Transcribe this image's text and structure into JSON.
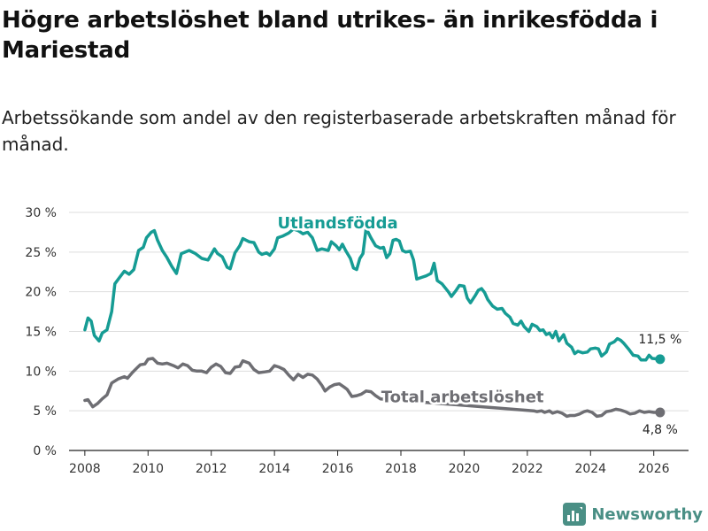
{
  "title": "Högre arbetslöshet bland utrikes- än inrikesfödda i Mariestad",
  "subtitle": "Arbetssökande som andel av den registerbaserade arbetskraften månad för månad.",
  "brand": {
    "name": "Newsworthy",
    "color": "#4a8f85",
    "icon": "newsworthy-logo-icon"
  },
  "chart_data": {
    "type": "line",
    "title": "Högre arbetslöshet bland utrikes- än inrikesfödda i Mariestad",
    "xlabel": "",
    "ylabel": "",
    "xlim": [
      2007.5,
      2027.1
    ],
    "ylim": [
      0,
      30
    ],
    "grid": true,
    "x_ticks": [
      2008,
      2010,
      2012,
      2014,
      2016,
      2018,
      2020,
      2022,
      2024,
      2026
    ],
    "x_tick_labels": [
      "2008",
      "2010",
      "2012",
      "2014",
      "2016",
      "2018",
      "2020",
      "2022",
      "2024",
      "2026"
    ],
    "y_ticks": [
      0,
      5,
      10,
      15,
      20,
      25,
      30
    ],
    "y_tick_labels": [
      "0 %",
      "5 %",
      "10 %",
      "15 %",
      "20 %",
      "25 %",
      "30 %"
    ],
    "series": [
      {
        "name": "Utlandsfödda",
        "color": "#169c94",
        "end_label": "11,5 %",
        "points": [
          [
            2008.0,
            15.2
          ],
          [
            2008.1,
            16.7
          ],
          [
            2008.2,
            16.3
          ],
          [
            2008.3,
            14.5
          ],
          [
            2008.45,
            13.8
          ],
          [
            2008.55,
            14.8
          ],
          [
            2008.7,
            15.2
          ],
          [
            2008.85,
            17.5
          ],
          [
            2008.95,
            21.0
          ],
          [
            2009.1,
            21.8
          ],
          [
            2009.25,
            22.6
          ],
          [
            2009.4,
            22.2
          ],
          [
            2009.55,
            22.8
          ],
          [
            2009.7,
            25.2
          ],
          [
            2009.85,
            25.6
          ],
          [
            2009.95,
            26.8
          ],
          [
            2010.1,
            27.5
          ],
          [
            2010.2,
            27.7
          ],
          [
            2010.3,
            26.5
          ],
          [
            2010.45,
            25.2
          ],
          [
            2010.6,
            24.3
          ],
          [
            2010.75,
            23.2
          ],
          [
            2010.9,
            22.3
          ],
          [
            2011.05,
            24.8
          ],
          [
            2011.3,
            25.2
          ],
          [
            2011.5,
            24.8
          ],
          [
            2011.7,
            24.2
          ],
          [
            2011.9,
            24.0
          ],
          [
            2012.1,
            25.4
          ],
          [
            2012.2,
            24.8
          ],
          [
            2012.35,
            24.4
          ],
          [
            2012.5,
            23.1
          ],
          [
            2012.6,
            22.9
          ],
          [
            2012.75,
            24.9
          ],
          [
            2012.9,
            25.8
          ],
          [
            2013.0,
            26.7
          ],
          [
            2013.2,
            26.3
          ],
          [
            2013.35,
            26.2
          ],
          [
            2013.5,
            25.0
          ],
          [
            2013.6,
            24.7
          ],
          [
            2013.75,
            24.9
          ],
          [
            2013.85,
            24.6
          ],
          [
            2014.0,
            25.4
          ],
          [
            2014.1,
            26.8
          ],
          [
            2014.25,
            27.0
          ],
          [
            2014.45,
            27.4
          ],
          [
            2014.6,
            27.9
          ],
          [
            2014.75,
            27.7
          ],
          [
            2014.9,
            27.3
          ],
          [
            2015.05,
            27.5
          ],
          [
            2015.2,
            26.8
          ],
          [
            2015.35,
            25.2
          ],
          [
            2015.5,
            25.4
          ],
          [
            2015.7,
            25.2
          ],
          [
            2015.8,
            26.3
          ],
          [
            2015.95,
            25.8
          ],
          [
            2016.05,
            25.3
          ],
          [
            2016.15,
            26.0
          ],
          [
            2016.25,
            25.2
          ],
          [
            2016.4,
            24.2
          ],
          [
            2016.5,
            23.0
          ],
          [
            2016.6,
            22.8
          ],
          [
            2016.7,
            24.2
          ],
          [
            2016.8,
            24.8
          ],
          [
            2016.9,
            28.0
          ],
          [
            2017.05,
            26.8
          ],
          [
            2017.2,
            25.8
          ],
          [
            2017.35,
            25.5
          ],
          [
            2017.45,
            25.6
          ],
          [
            2017.55,
            24.3
          ],
          [
            2017.65,
            24.8
          ],
          [
            2017.75,
            26.5
          ],
          [
            2017.85,
            26.6
          ],
          [
            2017.95,
            26.4
          ],
          [
            2018.05,
            25.2
          ],
          [
            2018.15,
            25.0
          ],
          [
            2018.3,
            25.1
          ],
          [
            2018.4,
            24.0
          ],
          [
            2018.5,
            21.6
          ],
          [
            2018.65,
            21.8
          ],
          [
            2018.8,
            22.0
          ],
          [
            2018.95,
            22.3
          ],
          [
            2019.05,
            23.6
          ],
          [
            2019.15,
            21.4
          ],
          [
            2019.3,
            21.0
          ],
          [
            2019.4,
            20.5
          ],
          [
            2019.5,
            20.0
          ],
          [
            2019.6,
            19.4
          ],
          [
            2019.75,
            20.2
          ],
          [
            2019.85,
            20.8
          ],
          [
            2020.0,
            20.7
          ],
          [
            2020.1,
            19.2
          ],
          [
            2020.2,
            18.6
          ],
          [
            2020.35,
            19.5
          ],
          [
            2020.45,
            20.2
          ],
          [
            2020.55,
            20.4
          ],
          [
            2020.65,
            19.9
          ],
          [
            2020.75,
            19.0
          ],
          [
            2020.9,
            18.2
          ],
          [
            2021.05,
            17.8
          ],
          [
            2021.2,
            17.9
          ],
          [
            2021.3,
            17.3
          ],
          [
            2021.45,
            16.8
          ],
          [
            2021.55,
            16.0
          ],
          [
            2021.7,
            15.8
          ],
          [
            2021.8,
            16.3
          ],
          [
            2021.9,
            15.6
          ],
          [
            2022.05,
            15.0
          ],
          [
            2022.15,
            15.9
          ],
          [
            2022.3,
            15.6
          ],
          [
            2022.4,
            15.1
          ],
          [
            2022.5,
            15.2
          ],
          [
            2022.6,
            14.6
          ],
          [
            2022.7,
            14.8
          ],
          [
            2022.8,
            14.2
          ],
          [
            2022.9,
            15.0
          ],
          [
            2023.0,
            13.8
          ],
          [
            2023.15,
            14.6
          ],
          [
            2023.25,
            13.5
          ],
          [
            2023.4,
            13.0
          ],
          [
            2023.5,
            12.2
          ],
          [
            2023.6,
            12.5
          ],
          [
            2023.75,
            12.3
          ],
          [
            2023.9,
            12.4
          ],
          [
            2024.0,
            12.8
          ],
          [
            2024.15,
            12.9
          ],
          [
            2024.25,
            12.8
          ],
          [
            2024.35,
            11.9
          ],
          [
            2024.5,
            12.4
          ],
          [
            2024.6,
            13.4
          ],
          [
            2024.75,
            13.7
          ],
          [
            2024.85,
            14.1
          ],
          [
            2024.95,
            13.9
          ],
          [
            2025.05,
            13.5
          ],
          [
            2025.2,
            12.8
          ],
          [
            2025.35,
            12.0
          ],
          [
            2025.5,
            11.9
          ],
          [
            2025.6,
            11.4
          ],
          [
            2025.75,
            11.4
          ],
          [
            2025.85,
            12.0
          ],
          [
            2025.95,
            11.6
          ],
          [
            2026.2,
            11.5
          ]
        ]
      },
      {
        "name": "Total arbetslöshet",
        "color": "#6e6e73",
        "end_label": "4,8 %",
        "points": [
          [
            2008.0,
            6.3
          ],
          [
            2008.1,
            6.4
          ],
          [
            2008.25,
            5.5
          ],
          [
            2008.4,
            5.9
          ],
          [
            2008.55,
            6.5
          ],
          [
            2008.7,
            7.0
          ],
          [
            2008.85,
            8.5
          ],
          [
            2009.05,
            9.0
          ],
          [
            2009.25,
            9.3
          ],
          [
            2009.35,
            9.1
          ],
          [
            2009.5,
            9.8
          ],
          [
            2009.65,
            10.4
          ],
          [
            2009.75,
            10.8
          ],
          [
            2009.9,
            10.9
          ],
          [
            2010.0,
            11.5
          ],
          [
            2010.15,
            11.6
          ],
          [
            2010.3,
            11.0
          ],
          [
            2010.45,
            10.9
          ],
          [
            2010.6,
            11.0
          ],
          [
            2010.8,
            10.7
          ],
          [
            2010.95,
            10.4
          ],
          [
            2011.1,
            10.9
          ],
          [
            2011.25,
            10.7
          ],
          [
            2011.4,
            10.1
          ],
          [
            2011.55,
            10.0
          ],
          [
            2011.7,
            10.0
          ],
          [
            2011.85,
            9.8
          ],
          [
            2012.0,
            10.5
          ],
          [
            2012.15,
            10.9
          ],
          [
            2012.3,
            10.6
          ],
          [
            2012.45,
            9.8
          ],
          [
            2012.6,
            9.7
          ],
          [
            2012.75,
            10.5
          ],
          [
            2012.9,
            10.6
          ],
          [
            2013.0,
            11.3
          ],
          [
            2013.2,
            11.0
          ],
          [
            2013.35,
            10.2
          ],
          [
            2013.5,
            9.8
          ],
          [
            2013.7,
            9.9
          ],
          [
            2013.85,
            10.0
          ],
          [
            2014.0,
            10.7
          ],
          [
            2014.15,
            10.5
          ],
          [
            2014.3,
            10.2
          ],
          [
            2014.45,
            9.5
          ],
          [
            2014.6,
            8.9
          ],
          [
            2014.75,
            9.6
          ],
          [
            2014.9,
            9.2
          ],
          [
            2015.05,
            9.6
          ],
          [
            2015.2,
            9.5
          ],
          [
            2015.35,
            9.0
          ],
          [
            2015.5,
            8.2
          ],
          [
            2015.6,
            7.5
          ],
          [
            2015.75,
            8.0
          ],
          [
            2015.9,
            8.3
          ],
          [
            2016.05,
            8.4
          ],
          [
            2016.2,
            8.0
          ],
          [
            2016.3,
            7.7
          ],
          [
            2016.45,
            6.8
          ],
          [
            2016.6,
            6.9
          ],
          [
            2016.75,
            7.1
          ],
          [
            2016.9,
            7.5
          ],
          [
            2017.05,
            7.4
          ],
          [
            2017.2,
            6.9
          ],
          [
            2017.35,
            6.5
          ],
          [
            2022.2,
            5.0
          ],
          [
            2022.3,
            4.9
          ],
          [
            2022.45,
            5.0
          ],
          [
            2022.55,
            4.8
          ],
          [
            2022.7,
            5.0
          ],
          [
            2022.8,
            4.7
          ],
          [
            2022.95,
            4.9
          ],
          [
            2023.1,
            4.7
          ],
          [
            2023.25,
            4.3
          ],
          [
            2023.35,
            4.4
          ],
          [
            2023.5,
            4.4
          ],
          [
            2023.65,
            4.6
          ],
          [
            2023.8,
            4.9
          ],
          [
            2023.9,
            5.0
          ],
          [
            2024.05,
            4.8
          ],
          [
            2024.2,
            4.3
          ],
          [
            2024.35,
            4.4
          ],
          [
            2024.5,
            4.9
          ],
          [
            2024.65,
            5.0
          ],
          [
            2024.8,
            5.2
          ],
          [
            2024.95,
            5.1
          ],
          [
            2025.1,
            4.9
          ],
          [
            2025.25,
            4.6
          ],
          [
            2025.4,
            4.7
          ],
          [
            2025.55,
            5.0
          ],
          [
            2025.7,
            4.8
          ],
          [
            2025.85,
            4.9
          ],
          [
            2026.0,
            4.8
          ],
          [
            2026.2,
            4.8
          ]
        ]
      }
    ],
    "annotations": [
      {
        "text": "Utlandsfödda",
        "series": "Utlandsfödda",
        "at_x": 2016.0,
        "at_y": 28.0
      },
      {
        "text": "Total arbetslöshet",
        "series": "Total arbetslöshet",
        "at_x": 2019.95,
        "at_y": 6.1
      }
    ]
  }
}
